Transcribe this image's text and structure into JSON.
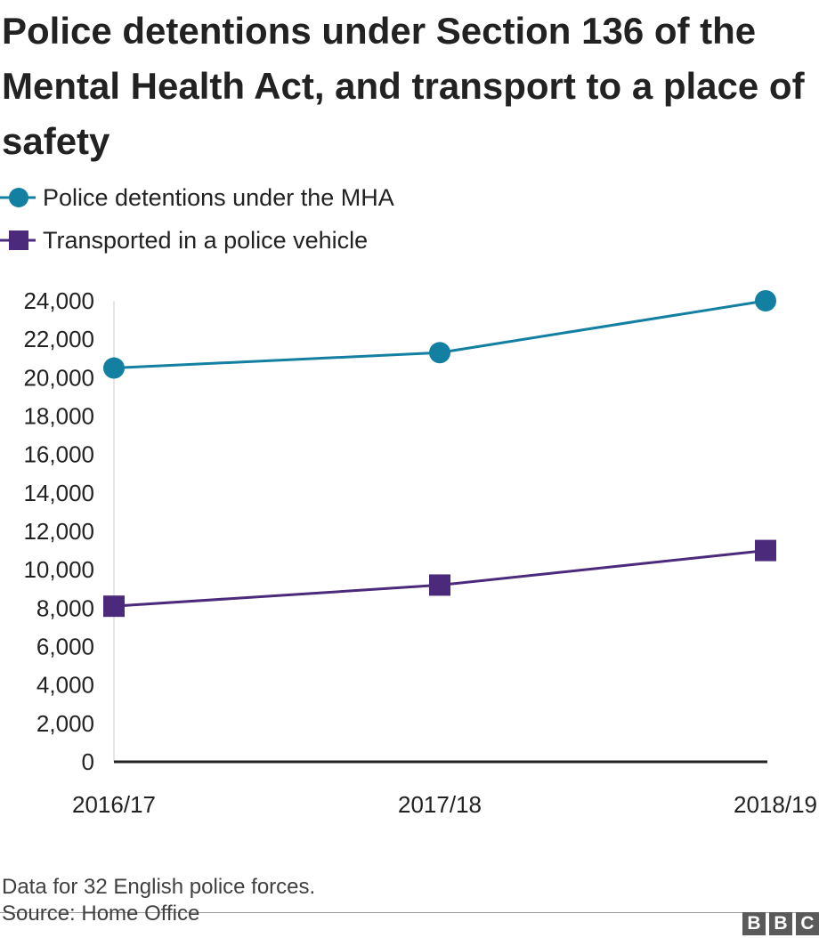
{
  "chart_data": {
    "type": "line",
    "title": "Police detentions under Section 136 of the Mental Health Act, and transport to a place of safety",
    "categories": [
      "2016/17",
      "2017/18",
      "2018/19"
    ],
    "series": [
      {
        "name": "Police detentions under the MHA",
        "values": [
          20500,
          21300,
          24000
        ],
        "color": "#1380A1",
        "marker": "circle"
      },
      {
        "name": "Transported in a police vehicle",
        "values": [
          8100,
          9200,
          11000
        ],
        "color": "#4B2A7B",
        "marker": "square"
      }
    ],
    "ylim": [
      0,
      24000
    ],
    "yticks": [
      0,
      2000,
      4000,
      6000,
      8000,
      10000,
      12000,
      14000,
      16000,
      18000,
      20000,
      22000,
      24000
    ],
    "ytick_labels": [
      "0",
      "2,000",
      "4,000",
      "6,000",
      "8,000",
      "10,000",
      "12,000",
      "14,000",
      "16,000",
      "18,000",
      "20,000",
      "22,000",
      "24,000"
    ],
    "xlabel": "",
    "ylabel": "",
    "grid": false,
    "legend_position": "top-left"
  },
  "footer": {
    "note": "Data for 32 English police forces.",
    "source": "Source: Home Office",
    "logo_letters": [
      "B",
      "B",
      "C"
    ]
  }
}
